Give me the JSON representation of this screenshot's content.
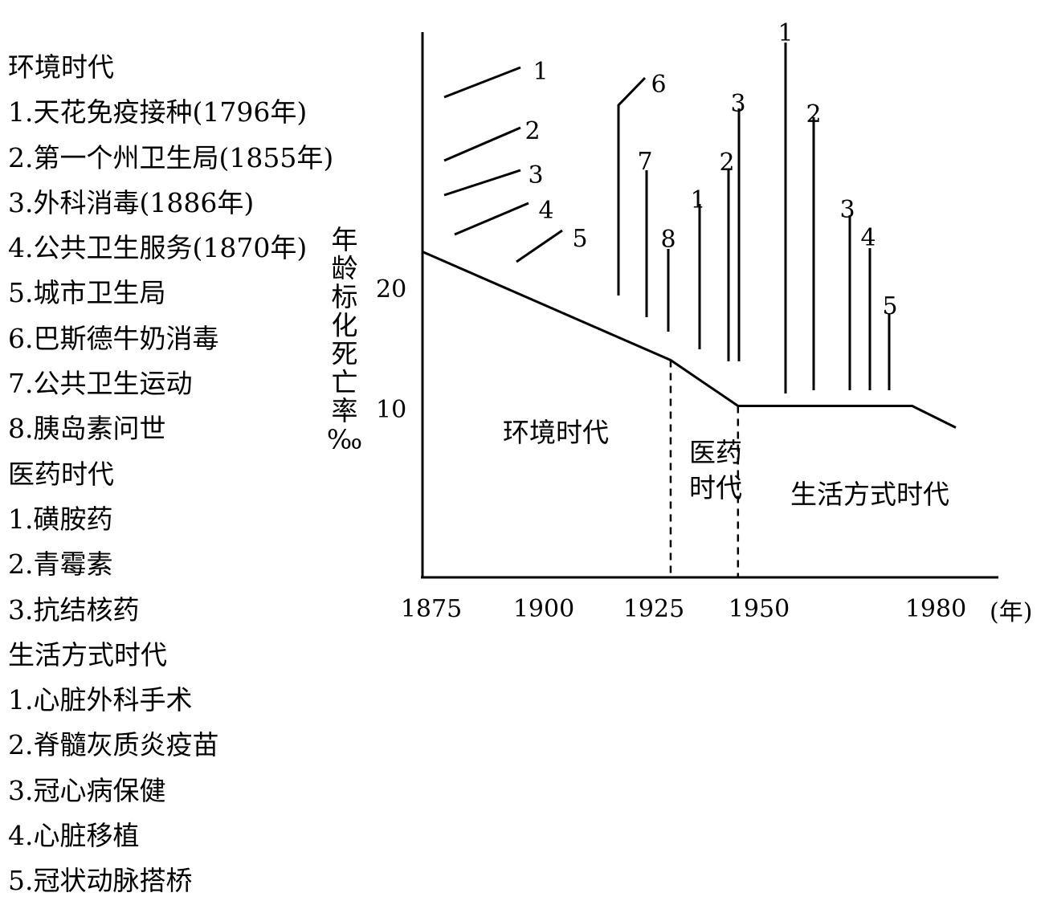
{
  "legend": [
    "环境时代",
    "1.天花免疫接种(1796年)",
    "2.第一个州卫生局(1855年)",
    "3.外科消毒(1886年)",
    "4.公共卫生服务(1870年)",
    "5.城市卫生局",
    "6.巴斯德牛奶消毒",
    "7.公共卫生运动",
    "8.胰岛素问世",
    "医药时代",
    "1.磺胺药",
    "2.青霉素",
    "3.抗结核药",
    "生活方式时代",
    "1.心脏外科手术",
    "2.脊髓灰质炎疫苗",
    "3.冠心病保健",
    "4.心脏移植",
    "5.冠状动脉搭桥"
  ],
  "chart_data": {
    "type": "line",
    "title": "",
    "ylabel": "年龄标化死亡率‰",
    "xunit": "(年)",
    "xticks": [
      "1875",
      "1900",
      "1925",
      "1950",
      "1980"
    ],
    "yticks": [
      "20",
      "10"
    ],
    "series": [
      {
        "values": [
          {
            "x": 1873,
            "y": 23.1
          },
          {
            "x": 1929,
            "y": 14.1
          },
          {
            "x": 1945,
            "y": 10.3
          },
          {
            "x": 1976,
            "y": 10.3
          },
          {
            "x": 1990,
            "y": 8.5
          }
        ]
      }
    ],
    "dividers": [
      1929,
      1945
    ],
    "eras": [
      "环境时代",
      "医药\n时代",
      "生活方式时代"
    ],
    "milestones": [
      {
        "era": "环境时代",
        "label": "1",
        "x": 1880
      },
      {
        "era": "环境时代",
        "label": "2",
        "x": 1880
      },
      {
        "era": "环境时代",
        "label": "3",
        "x": 1880
      },
      {
        "era": "环境时代",
        "label": "4",
        "x": 1882
      },
      {
        "era": "环境时代",
        "label": "5",
        "x": 1895
      },
      {
        "era": "环境时代",
        "label": "6",
        "x": 1917
      },
      {
        "era": "环境时代",
        "label": "7",
        "x": 1923
      },
      {
        "era": "环境时代",
        "label": "8",
        "x": 1928
      },
      {
        "era": "医药时代",
        "label": "1",
        "x": 1935
      },
      {
        "era": "医药时代",
        "label": "2",
        "x": 1942
      },
      {
        "era": "医药时代",
        "label": "3",
        "x": 1944
      },
      {
        "era": "生活方式时代",
        "label": "1",
        "x": 1954
      },
      {
        "era": "生活方式时代",
        "label": "2",
        "x": 1960
      },
      {
        "era": "生活方式时代",
        "label": "3",
        "x": 1968
      },
      {
        "era": "生活方式时代",
        "label": "4",
        "x": 1972
      },
      {
        "era": "生活方式时代",
        "label": "5",
        "x": 1976
      }
    ]
  }
}
